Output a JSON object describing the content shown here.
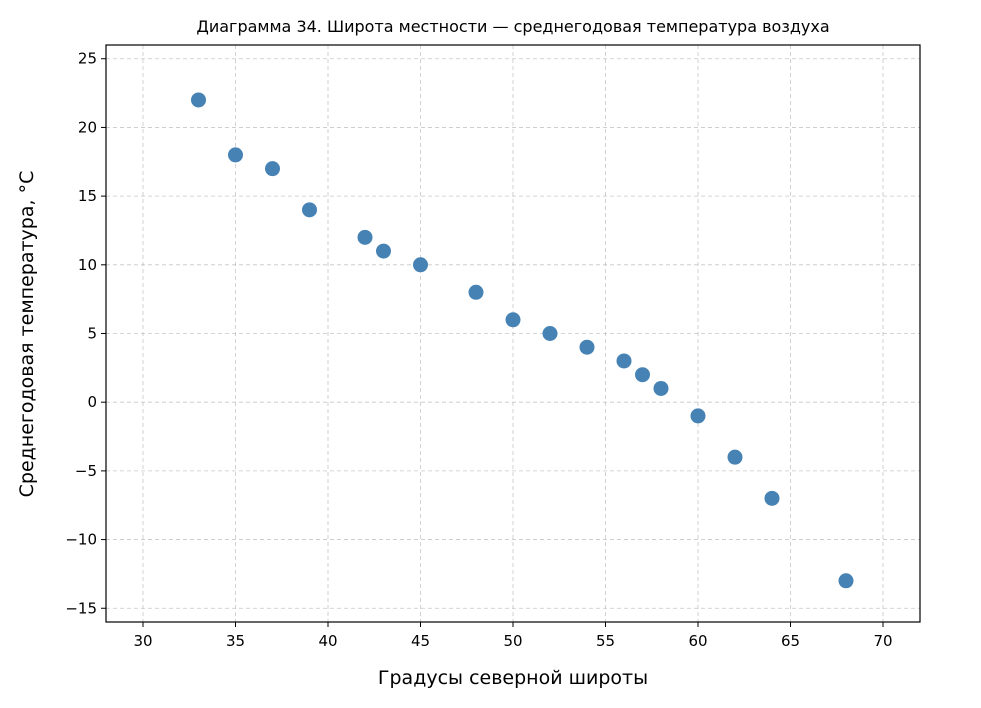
{
  "chart_data": {
    "type": "scatter",
    "title": "Диаграмма 34. Широта местности — среднегодовая температура воздуха",
    "xlabel": "Градусы северной широты",
    "ylabel": "Среднегодовая температура, °C",
    "xlim": [
      28,
      72
    ],
    "ylim": [
      -16,
      26
    ],
    "xticks": [
      30,
      35,
      40,
      45,
      50,
      55,
      60,
      65,
      70
    ],
    "yticks": [
      -15,
      -10,
      -5,
      0,
      5,
      10,
      15,
      20,
      25
    ],
    "xtick_labels": [
      "30",
      "35",
      "40",
      "45",
      "50",
      "55",
      "60",
      "65",
      "70"
    ],
    "ytick_labels": [
      "−15",
      "−10",
      "−5",
      "0",
      "5",
      "10",
      "15",
      "20",
      "25"
    ],
    "grid": true,
    "color": "#4682b4",
    "x": [
      33,
      35,
      37,
      39,
      42,
      43,
      45,
      48,
      50,
      52,
      54,
      56,
      57,
      58,
      60,
      62,
      64,
      68
    ],
    "y": [
      22,
      18,
      17,
      14,
      12,
      11,
      10,
      8,
      6,
      5,
      4,
      3,
      2,
      1,
      -1,
      -4,
      -7,
      -13
    ]
  }
}
